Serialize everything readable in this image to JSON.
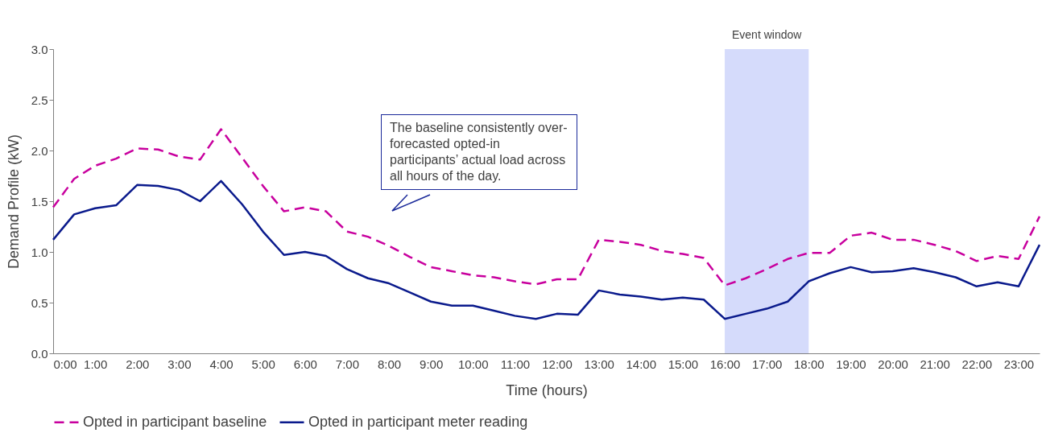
{
  "chart_data": {
    "type": "line",
    "xlabel": "Time (hours)",
    "ylabel": "Demand Profile (kW)",
    "x": [
      0,
      0.5,
      1,
      1.5,
      2,
      2.5,
      3,
      3.5,
      4,
      4.5,
      5,
      5.5,
      6,
      6.5,
      7,
      7.5,
      8,
      8.5,
      9,
      9.5,
      10,
      10.5,
      11,
      11.5,
      12,
      12.5,
      13,
      13.5,
      14,
      14.5,
      15,
      15.5,
      16,
      16.5,
      17,
      17.5,
      18,
      18.5,
      19,
      19.5,
      20,
      20.5,
      21,
      21.5,
      22,
      22.5,
      23,
      23.5
    ],
    "series": [
      {
        "name": "Opted in participant baseline",
        "color": "#c8009e",
        "line_style": "dashed",
        "values": [
          1.44,
          1.72,
          1.85,
          1.92,
          2.02,
          2.01,
          1.94,
          1.91,
          2.21,
          1.93,
          1.65,
          1.4,
          1.44,
          1.4,
          1.2,
          1.15,
          1.06,
          0.95,
          0.85,
          0.81,
          0.77,
          0.75,
          0.71,
          0.68,
          0.73,
          0.73,
          1.12,
          1.1,
          1.07,
          1.01,
          0.98,
          0.94,
          0.67,
          0.74,
          0.83,
          0.93,
          0.99,
          0.99,
          1.16,
          1.19,
          1.12,
          1.12,
          1.07,
          1.01,
          0.91,
          0.96,
          0.93,
          1.35
        ]
      },
      {
        "name": "Opted in participant meter reading",
        "color": "#0a1a8c",
        "line_style": "solid",
        "values": [
          1.12,
          1.37,
          1.43,
          1.46,
          1.66,
          1.65,
          1.61,
          1.5,
          1.7,
          1.47,
          1.2,
          0.97,
          1.0,
          0.96,
          0.83,
          0.74,
          0.69,
          0.6,
          0.51,
          0.47,
          0.47,
          0.42,
          0.37,
          0.34,
          0.39,
          0.38,
          0.62,
          0.58,
          0.56,
          0.53,
          0.55,
          0.53,
          0.34,
          0.39,
          0.44,
          0.51,
          0.71,
          0.79,
          0.85,
          0.8,
          0.81,
          0.84,
          0.8,
          0.75,
          0.66,
          0.7,
          0.66,
          1.07
        ]
      }
    ],
    "xlim": [
      0,
      23.5
    ],
    "xticks": [
      {
        "value": 0,
        "label": "0:00"
      },
      {
        "value": 1,
        "label": "1:00"
      },
      {
        "value": 2,
        "label": "2:00"
      },
      {
        "value": 3,
        "label": "3:00"
      },
      {
        "value": 4,
        "label": "4:00"
      },
      {
        "value": 5,
        "label": "5:00"
      },
      {
        "value": 6,
        "label": "6:00"
      },
      {
        "value": 7,
        "label": "7:00"
      },
      {
        "value": 8,
        "label": "8:00"
      },
      {
        "value": 9,
        "label": "9:00"
      },
      {
        "value": 10,
        "label": "10:00"
      },
      {
        "value": 11,
        "label": "11:00"
      },
      {
        "value": 12,
        "label": "12:00"
      },
      {
        "value": 13,
        "label": "13:00"
      },
      {
        "value": 14,
        "label": "14:00"
      },
      {
        "value": 15,
        "label": "15:00"
      },
      {
        "value": 16,
        "label": "16:00"
      },
      {
        "value": 17,
        "label": "17:00"
      },
      {
        "value": 18,
        "label": "18:00"
      },
      {
        "value": 19,
        "label": "19:00"
      },
      {
        "value": 20,
        "label": "20:00"
      },
      {
        "value": 21,
        "label": "21:00"
      },
      {
        "value": 22,
        "label": "22:00"
      },
      {
        "value": 23,
        "label": "23:00"
      }
    ],
    "ylim": [
      0,
      3
    ],
    "yticks": [
      {
        "value": 0,
        "label": "0.0"
      },
      {
        "value": 0.5,
        "label": "0.5"
      },
      {
        "value": 1,
        "label": "1.0"
      },
      {
        "value": 1.5,
        "label": "1.5"
      },
      {
        "value": 2,
        "label": "2.0"
      },
      {
        "value": 2.5,
        "label": "2.5"
      },
      {
        "value": 3,
        "label": "3.0"
      }
    ],
    "bands": [
      {
        "axis": "x",
        "from": 16,
        "to": 18,
        "label": "Event window",
        "color": "#d5dbfb"
      }
    ],
    "annotations": [
      "The baseline consistently over-forecasted opted-in participants’ actual load across all hours of the day."
    ],
    "grid": false,
    "legend": "bottom",
    "marker": "none"
  }
}
